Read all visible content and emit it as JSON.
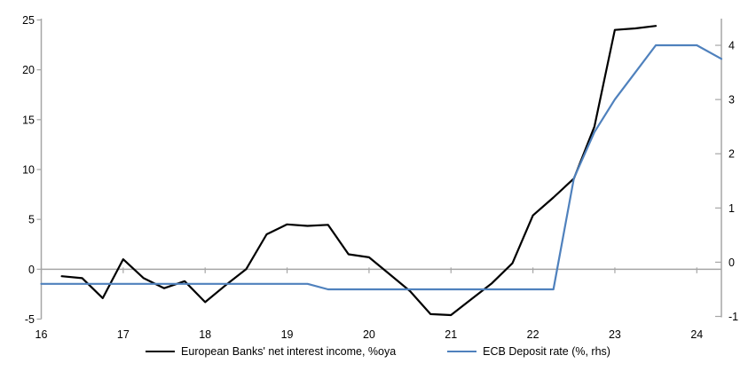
{
  "chart_data": {
    "type": "line",
    "title": "",
    "x_axis": {
      "min": 16,
      "max": 24.3,
      "ticks": [
        16,
        17,
        18,
        19,
        20,
        21,
        22,
        23,
        24
      ]
    },
    "left_axis": {
      "min": -5,
      "max": 25,
      "ticks": [
        25,
        20,
        15,
        10,
        5,
        0,
        -5
      ]
    },
    "right_axis": {
      "min": -1,
      "max": 4.5,
      "ticks": [
        4,
        3,
        2,
        1,
        0,
        -1
      ]
    },
    "zero_gridline_value": 0,
    "legend_position": "bottom-center",
    "grid": "zero-line-only",
    "series": [
      {
        "name": "European Banks' net interest income, %oya",
        "axis": "left",
        "color": "#000000",
        "points": [
          [
            16.25,
            -0.7
          ],
          [
            16.5,
            -0.9
          ],
          [
            16.75,
            -2.9
          ],
          [
            17.0,
            1.0
          ],
          [
            17.25,
            -0.9
          ],
          [
            17.5,
            -1.9
          ],
          [
            17.75,
            -1.2
          ],
          [
            18.0,
            -3.3
          ],
          [
            18.25,
            -1.6
          ],
          [
            18.5,
            0.0
          ],
          [
            18.75,
            3.5
          ],
          [
            19.0,
            4.5
          ],
          [
            19.25,
            4.35
          ],
          [
            19.5,
            4.45
          ],
          [
            19.75,
            1.5
          ],
          [
            20.0,
            1.2
          ],
          [
            20.25,
            -0.5
          ],
          [
            20.5,
            -2.2
          ],
          [
            20.75,
            -4.5
          ],
          [
            21.0,
            -4.6
          ],
          [
            21.25,
            -3.0
          ],
          [
            21.5,
            -1.4
          ],
          [
            21.75,
            0.6
          ],
          [
            22.0,
            5.4
          ],
          [
            22.25,
            7.2
          ],
          [
            22.5,
            9.1
          ],
          [
            22.75,
            14.3
          ],
          [
            23.0,
            24.0
          ],
          [
            23.25,
            24.15
          ],
          [
            23.5,
            24.4
          ]
        ]
      },
      {
        "name": "ECB Deposit rate (%, rhs)",
        "axis": "right",
        "color": "#4F81BD",
        "points": [
          [
            16.0,
            -0.4
          ],
          [
            19.25,
            -0.4
          ],
          [
            19.5,
            -0.5
          ],
          [
            22.25,
            -0.5
          ],
          [
            22.5,
            1.55
          ],
          [
            22.75,
            2.4
          ],
          [
            23.0,
            3.0
          ],
          [
            23.25,
            3.5
          ],
          [
            23.5,
            4.0
          ],
          [
            24.0,
            4.0
          ],
          [
            24.3,
            3.75
          ]
        ]
      }
    ],
    "colors": {
      "axis_line": "#A6A6A6",
      "tick_text": "#000000",
      "background": "#FFFFFF"
    }
  }
}
